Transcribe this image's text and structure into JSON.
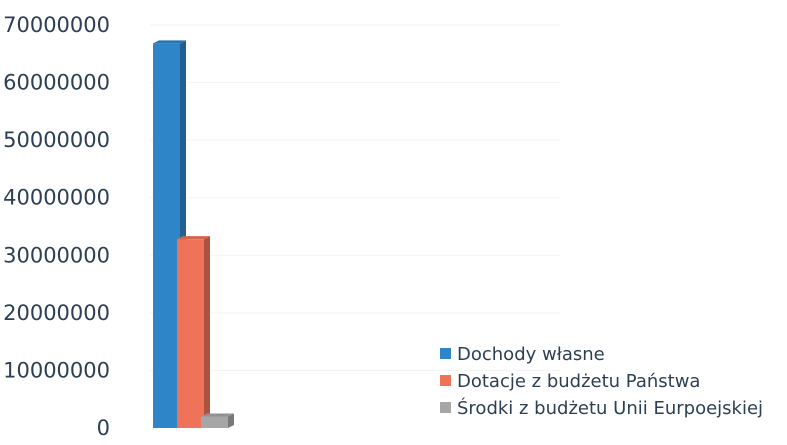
{
  "chart_data": {
    "type": "bar",
    "style": "3d-clustered-column",
    "title": "",
    "xlabel": "",
    "ylabel": "",
    "ylim": [
      0,
      70000000
    ],
    "y_ticks": [
      "0",
      "10000000",
      "20000000",
      "30000000",
      "40000000",
      "50000000",
      "60000000",
      "70000000"
    ],
    "grid": true,
    "legend_position": "bottom-right",
    "categories": [
      ""
    ],
    "series": [
      {
        "name": "Dochody własne",
        "color": "#2e86c8",
        "values": [
          66800000
        ]
      },
      {
        "name": "Dotacje z budżetu Państwa",
        "color": "#ef7358",
        "values": [
          32800000
        ]
      },
      {
        "name": "Środki z budżetu Unii Eurpoejskiej",
        "color": "#a6a6a6",
        "values": [
          2000000
        ]
      }
    ]
  }
}
